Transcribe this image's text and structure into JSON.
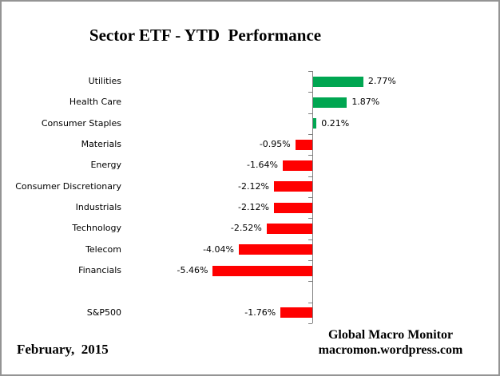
{
  "title": "Sector ETF - YTD  Performance",
  "footer": {
    "date_label": "February,  2015",
    "credit_line1": "Global Macro Monitor",
    "credit_line2": "macromon.wordpress.com"
  },
  "colors": {
    "positive_bar": "#00A651",
    "negative_bar": "#FF0000",
    "axis": "#7F7F7F",
    "frame_border": "#949494"
  },
  "chart_data": {
    "type": "bar",
    "orientation": "horizontal",
    "title": "Sector ETF - YTD  Performance",
    "unit": "%",
    "xlim": [
      -6.5,
      3.5
    ],
    "grid": false,
    "legend": "none",
    "value_labels_visible": true,
    "categories": [
      "Utilities",
      "Health Care",
      "Consumer Staples",
      "Materials",
      "Energy",
      "Consumer Discretionary",
      "Industrials",
      "Technology",
      "Telecom",
      "Financials",
      "S&P500"
    ],
    "values": [
      2.77,
      1.87,
      0.21,
      -0.95,
      -1.64,
      -2.12,
      -2.12,
      -2.52,
      -4.04,
      -5.46,
      -1.76
    ],
    "rows": [
      {
        "category": "Utilities",
        "value": 2.77,
        "label": "2.77%"
      },
      {
        "category": "Health Care",
        "value": 1.87,
        "label": "1.87%"
      },
      {
        "category": "Consumer Staples",
        "value": 0.21,
        "label": "0.21%"
      },
      {
        "category": "Materials",
        "value": -0.95,
        "label": "-0.95%"
      },
      {
        "category": "Energy",
        "value": -1.64,
        "label": "-1.64%"
      },
      {
        "category": "Consumer Discretionary",
        "value": -2.12,
        "label": "-2.12%"
      },
      {
        "category": "Industrials",
        "value": -2.12,
        "label": "-2.12%"
      },
      {
        "category": "Technology",
        "value": -2.52,
        "label": "-2.52%"
      },
      {
        "category": "Telecom",
        "value": -4.04,
        "label": "-4.04%"
      },
      {
        "category": "Financials",
        "value": -5.46,
        "label": "-5.46%"
      },
      {
        "category": "S&P500",
        "value": -1.76,
        "label": "-1.76%",
        "gap_before": true
      }
    ]
  }
}
